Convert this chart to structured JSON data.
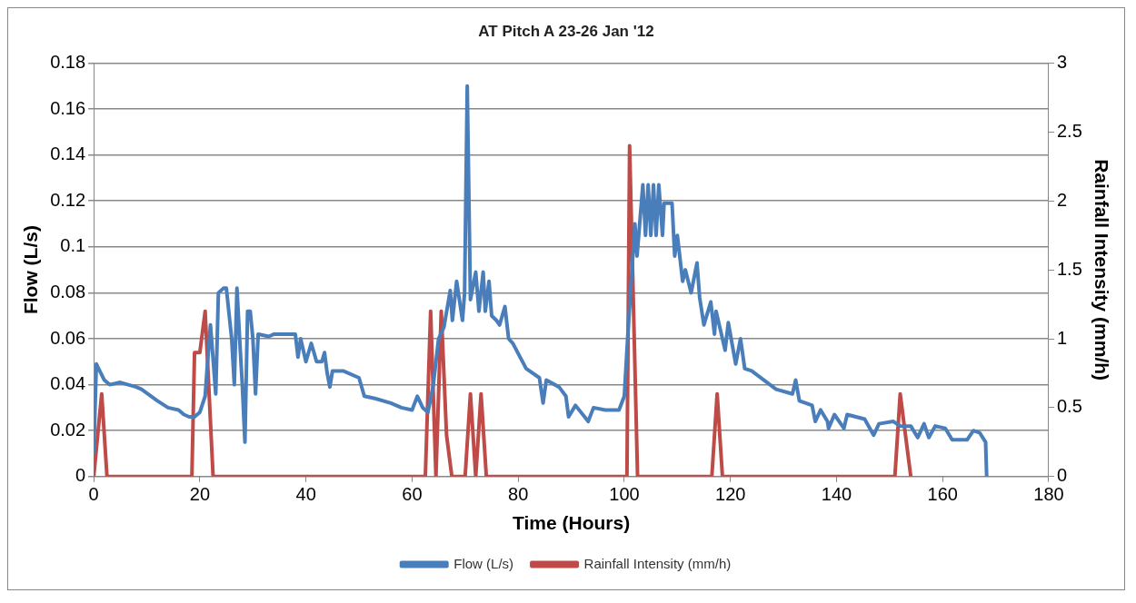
{
  "chart_data": {
    "type": "line",
    "title": "AT Pitch A 23-26 Jan '12",
    "xlabel": "Time (Hours)",
    "ylabel": "Flow (L/s)",
    "y2label": "Rainfall Intensity (mm/h)",
    "xlim": [
      0,
      180
    ],
    "xticks": [
      0,
      20,
      40,
      60,
      80,
      100,
      120,
      140,
      160,
      180
    ],
    "ylim": [
      0,
      0.18
    ],
    "yticks": [
      0,
      0.02,
      0.04,
      0.06,
      0.08,
      0.1,
      0.12,
      0.14,
      0.16,
      0.18
    ],
    "y2lim": [
      0,
      3
    ],
    "y2ticks": [
      0,
      0.5,
      1,
      1.5,
      2,
      2.5,
      3
    ],
    "grid": "y",
    "legend": "bottom",
    "marker": "none",
    "line_style": "solid",
    "series": [
      {
        "name": "Flow (L/s)",
        "color": "#4a7ebb",
        "x": [
          0,
          0.5,
          2,
          3,
          5,
          8,
          9,
          12,
          14,
          16,
          17,
          18,
          19,
          20,
          21,
          21.4,
          22,
          23,
          23.5,
          24.5,
          25,
          26,
          26.5,
          27,
          27.5,
          28,
          28.5,
          29,
          29.5,
          30,
          30.5,
          31,
          33,
          34,
          38,
          38.5,
          39,
          40,
          41,
          42,
          43,
          43.5,
          44,
          44.5,
          45,
          47,
          50,
          51,
          53,
          56,
          58,
          60,
          61,
          62,
          63,
          64,
          65,
          66,
          67.2,
          67.6,
          68.4,
          69.5,
          69.9,
          70.4,
          71,
          72,
          72.6,
          73.4,
          73.8,
          74.5,
          75,
          75.9,
          76.5,
          77.5,
          78.2,
          79,
          81.5,
          84,
          84.7,
          85.3,
          87.7,
          89,
          89.5,
          90.8,
          93.2,
          94.2,
          96.4,
          99,
          100,
          100.7,
          102,
          102.4,
          103.5,
          104,
          104.5,
          105,
          105.5,
          106,
          106.5,
          107.2,
          107.5,
          109,
          109.5,
          110,
          111,
          111.5,
          112.6,
          113.7,
          114.2,
          115,
          116.3,
          117,
          117.3,
          119,
          119.6,
          121,
          121.9,
          122.7,
          124,
          128.6,
          131.7,
          132.3,
          133,
          135.4,
          136,
          137,
          138.3,
          138.5,
          139.6,
          141.4,
          142,
          145.3,
          147,
          148,
          150.7,
          152,
          154,
          155.3,
          156.5,
          157.4,
          158.6,
          160.5,
          161.8,
          164.6,
          165.8,
          167,
          168.1,
          168.3
        ],
        "values": [
          0.01,
          0.049,
          0.042,
          0.04,
          0.041,
          0.039,
          0.038,
          0.033,
          0.03,
          0.029,
          0.027,
          0.026,
          0.026,
          0.028,
          0.035,
          0.048,
          0.066,
          0.036,
          0.08,
          0.082,
          0.082,
          0.06,
          0.04,
          0.082,
          0.06,
          0.04,
          0.015,
          0.072,
          0.072,
          0.06,
          0.036,
          0.062,
          0.061,
          0.062,
          0.062,
          0.052,
          0.06,
          0.05,
          0.058,
          0.05,
          0.05,
          0.054,
          0.045,
          0.039,
          0.046,
          0.046,
          0.043,
          0.035,
          0.034,
          0.032,
          0.03,
          0.029,
          0.035,
          0.03,
          0.028,
          0.04,
          0.06,
          0.065,
          0.081,
          0.068,
          0.085,
          0.068,
          0.08,
          0.17,
          0.077,
          0.089,
          0.072,
          0.089,
          0.072,
          0.085,
          0.07,
          0.068,
          0.066,
          0.074,
          0.06,
          0.058,
          0.047,
          0.043,
          0.032,
          0.042,
          0.039,
          0.035,
          0.026,
          0.031,
          0.024,
          0.03,
          0.029,
          0.029,
          0.035,
          0.063,
          0.11,
          0.096,
          0.127,
          0.105,
          0.127,
          0.105,
          0.127,
          0.105,
          0.127,
          0.105,
          0.119,
          0.119,
          0.096,
          0.105,
          0.085,
          0.09,
          0.08,
          0.093,
          0.078,
          0.066,
          0.076,
          0.062,
          0.072,
          0.055,
          0.067,
          0.049,
          0.06,
          0.047,
          0.046,
          0.038,
          0.036,
          0.042,
          0.033,
          0.031,
          0.024,
          0.029,
          0.024,
          0.021,
          0.027,
          0.021,
          0.027,
          0.025,
          0.018,
          0.023,
          0.024,
          0.022,
          0.022,
          0.017,
          0.023,
          0.017,
          0.022,
          0.021,
          0.016,
          0.016,
          0.02,
          0.019,
          0.015,
          0
        ]
      },
      {
        "name": "Rainfall Intensity (mm/h)",
        "color": "#be4b48",
        "axis": "y2",
        "x": [
          0,
          1.5,
          2.5,
          18.5,
          19,
          20,
          21,
          22.5,
          62.5,
          63.5,
          64.5,
          65.5,
          66.5,
          67.5,
          70,
          71,
          72,
          73,
          74,
          100.5,
          101,
          102.5,
          116.5,
          117.5,
          118.5,
          151,
          152,
          154
        ],
        "values": [
          0,
          0.6,
          0,
          0,
          0.9,
          0.9,
          1.2,
          0,
          0,
          1.2,
          0,
          1.2,
          0.3,
          0,
          0,
          0.6,
          0,
          0.6,
          0,
          0,
          2.4,
          0,
          0,
          0.6,
          0,
          0,
          0.6,
          0
        ]
      }
    ]
  }
}
